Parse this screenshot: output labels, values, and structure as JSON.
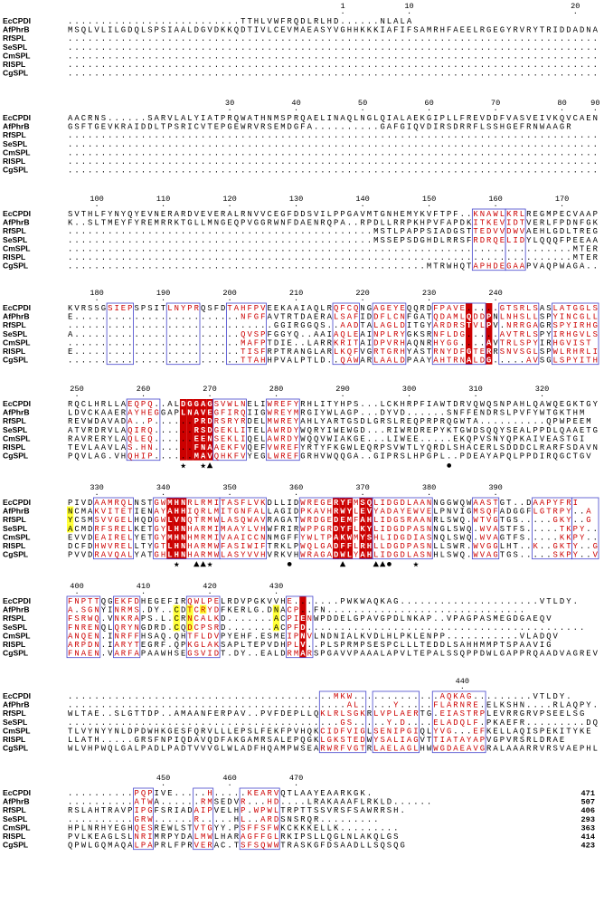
{
  "alignment": {
    "blocks": [
      {
        "ruler": [
          "1",
          "10",
          "20"
        ],
        "rows": [
          {
            "name": "EcCPDI",
            "seq": "..........................TTHLVWFRQDLRLHD......NLALA"
          },
          {
            "name": "AfPhrB",
            "seq": "MSQLVLILGDQLSPSIAALDGVDKKQDTIVLCEVMAEASYVGHHKKKIAFIFSAMRHFAEELRGEGYRVRYTRIDDADNA"
          },
          {
            "name": "RfSPL",
            "seq": "................................................................................"
          },
          {
            "name": "SeSPL",
            "seq": "................................................................................"
          },
          {
            "name": "CmSPL",
            "seq": "................................................................................"
          },
          {
            "name": "RlSPL",
            "seq": "................................................................................"
          },
          {
            "name": "CgSPL",
            "seq": "................................................................................"
          }
        ]
      },
      {
        "ruler": [
          "30",
          "40",
          "50",
          "60",
          "70",
          "80",
          "90"
        ],
        "rows": [
          {
            "name": "EcCPDI",
            "seq": "AACRNS......SARVLALYIATPRQWATHNMSPRQAELINAQLNGLQIALAEKGIPLLFREVDDFVASVEIVKQVCAEN"
          },
          {
            "name": "AfPhrB",
            "seq": "GSFTGEVKRAIDDLTPSRICVTEPGEWRVRSEMDGFA..........GAFGIQVDIRSDRRFLSSHGEFRNWAAGR"
          },
          {
            "name": "RfSPL",
            "seq": "................................................................................"
          },
          {
            "name": "SeSPL",
            "seq": "................................................................................"
          },
          {
            "name": "CmSPL",
            "seq": "................................................................................"
          },
          {
            "name": "RlSPL",
            "seq": "................................................................................"
          },
          {
            "name": "CgSPL",
            "seq": "................................................................................"
          }
        ]
      },
      {
        "ruler": [
          "100",
          "110",
          "120",
          "130",
          "140",
          "150",
          "160",
          "170"
        ],
        "rows": [
          {
            "name": "EcCPDI",
            "seq": "SVTHLFYNYQYEVNERARDVEVERALRNVVCEGFDDSVILPPGAVMTGNHEMYKVFTPF..KNAWLKRLREGMPECVAAP"
          },
          {
            "name": "AfPhrB",
            "seq": "K..SLTMEYFYREMRRKTGLLMNGEQPVGGRWNFDAENRQPA..RPDLLRRPKHPVFAPDKITKEVIDTVERLFPDNFGKL"
          },
          {
            "name": "RfSPL",
            "seq": "..............................................MSTLPAPPSIADGSTTEDVVDWVAEHLGDLTREGFDAITA."
          },
          {
            "name": "SeSPL",
            "seq": "..............................................MSSEPSDGHDLRRSFRDRQELIDYLQQQFPEEAAVD"
          },
          {
            "name": "CmSPL",
            "seq": "............................................................................MTERFPEELAEAK"
          },
          {
            "name": "RlSPL",
            "seq": "............................................................................MTERFPEELAEAK"
          },
          {
            "name": "CgSPL",
            "seq": "......................................................MTRWHQTAPHDEGAAPVAQPWAGA.."
          }
        ]
      },
      {
        "ruler": [
          "180",
          "190",
          "200",
          "210",
          "220",
          "230",
          "240"
        ],
        "rows": [
          {
            "name": "EcCPDI",
            "seq": "KVRSSGSIEPSPSITLNYPRQSFDTAHFPVEEKAAIAQLRQFCQNGAGEYEQQRDFPAVE.....GTSRLSASLATGGLSP"
          },
          {
            "name": "AfPhrB",
            "seq": "E.........................NFGFAVTRTDAERALSAFIDDFLCNFGATQDAMLQDDPNLNHSLLSPYINCGLLDA"
          },
          {
            "name": "RfSPL",
            "seq": "...............................GGIRGGQS..AADTALAGLDITGYARDRSTVLPV.NRRGAGRSPYIRHGLLTL"
          },
          {
            "name": "SeSPL",
            "seq": "A.........................QVSPFGGYQ..AAIAQLEAINPLRYGKSRNFLDG.....AVTRLSPYIRHGVLSL"
          },
          {
            "name": "CmSPL",
            "seq": "..........................MAFPTDIE..LARRKRITAIDPVRHAQNRHYGG....AVTRLSPYIRHGVIST"
          },
          {
            "name": "RlSPL",
            "seq": "E.........................TISFRPTRANGLARLKQFVGRTGRHYASTRNYDFGTERRSNVSGLSPWLRHRLITE"
          },
          {
            "name": "CgSPL",
            "seq": "..........................TTAHHPVALPTLD..QAWARLAALDPAAYAHTRNALDG.....AVSGLSPYITHGLLS"
          }
        ]
      },
      {
        "ruler": [
          "250",
          "260",
          "270",
          "280",
          "290",
          "300",
          "310",
          "320"
        ],
        "rows": [
          {
            "name": "EcCPDI",
            "seq": "RQCLHRLLAEQPQ..ALDGGAGSVWLNELIWREFYRHLITYHPS...LCKHRPFIAWTDRVQWQSNPAHLQAWQEGKTGY"
          },
          {
            "name": "AfPhrB",
            "seq": "LDVCKAAERAYHEGGAPLNAVEGFIRQIIGWREYMRGIYWLAGP...DYVD......SNFFENDRSLPVFYWTGKTHM"
          },
          {
            "name": "RfSPL",
            "seq": "REVWDAVADA..P......PRDRSRYRDELMWREYAHLYARTGSDLGRSLREQPRPRQGWTA..........QPWPEEM"
          },
          {
            "name": "SeSPL",
            "seq": "ATVRDRVLAQIRQ......RSDGEKLITELAWRDYWQRYIWEWGD...RIWRDREPYKTGWDSQQYSEALPPDLQAAETGL"
          },
          {
            "name": "CmSPL",
            "seq": "RAVRERYLAQLEQ......EENSEKLIQELAWRDYWQQVWIAKGE...LIWEE.....EKQPVSNYQPKAIVEASTGI"
          },
          {
            "name": "RlSPL",
            "seq": "TEVLAAVLAS.HN......FNAAEKFVQEFVWREFYRTYFKGWLEQRPSVWTLYQRDLSHACERLSDDDCLRARFSDAVNGNTGI"
          },
          {
            "name": "CgSPL",
            "seq": "PQVLAG.VHQHIP......MAVQHKFVYEGLWREFGRHVWQQGA..GIPRSLHPGPL..PDEAYAPQLPPDIRQGCTGV"
          }
        ]
      },
      {
        "ruler": [
          "330",
          "340",
          "350",
          "360",
          "370",
          "380",
          "390"
        ],
        "rows": [
          {
            "name": "EcCPDI",
            "seq": "PIVDAAMRQLNSTGWMHNRLRMITASFLVKDLLIDWREGERYFMSQLIDGDLAANNGGWQWAASTGT..DAAPYFRI"
          },
          {
            "name": "AfPhrB",
            "seq": "NCMAKVITETIENAYAHHIQRLMITGNFALLAGIDPKAVHRWYLEVYADAYEWVELPNVIGMSQFADGGFLGTRPY..A"
          },
          {
            "name": "RfSPL",
            "seq": "YCSMSVVGELHQDGWLVNQTRMWLASQWAVRAGATWRDGEDEMFAHLIDGSRAANRLSWQ.WTVGTGS.....GKY..G"
          },
          {
            "name": "SeSPL",
            "seq": "ACMDRFSRELKETGYLHNHARMIMAAYLVHWFRIRWPPGRDYFLKYLIDGDPASNNGLSWQ.WVASTFS.....TKPY..W"
          },
          {
            "name": "CmSPL",
            "seq": "EVVDEAIRELYETGYMHNHMRMIVAAICCNNMGFFYWLTPAKWMYSHLIDGDIASNQLSWQ.WVAGTFS.....KKPY..L"
          },
          {
            "name": "RlSPL",
            "seq": "DCFDHWVRELLTYGTLHNHARMWFASIWIFTRKLPWQLGADFFLRHLLDGDPASNLLSWR.WVGGLHT..K..GKTY..G"
          },
          {
            "name": "CgSPL",
            "seq": "PVVDRAVQALYATGHLHNHARMWLASYVVHVRKVHWRAGADWLYAHLIDGDLASNHLSWQ.WVAGTGS.....SKPY..V"
          }
        ]
      },
      {
        "ruler": [
          "400",
          "410",
          "420",
          "430"
        ],
        "rows": [
          {
            "name": "EcCPDI",
            "seq": "FNPTTQGEKFDHEGEFIRQWLPELRDVPGKVVHE.......PWKWAQKAG.....................VTLDY."
          },
          {
            "name": "AfPhrB",
            "seq": "A.SGNYINRMS.DY..CDTCRYDFKERLG.DNACP..FN.............................."
          },
          {
            "name": "RfSPL",
            "seq": "FSRWQ.VNKRAPS.L.CRNCALKD.......ACPIENWPDDELGPAVGPDLNKAP..VPAGPASMEGDGAEQV"
          },
          {
            "name": "SeSPL",
            "seq": "FNRENQLQRYNGDRD.CQDCPSRD.......ACPFD.........................................."
          },
          {
            "name": "CmSPL",
            "seq": "ANQEN.INRFFHSAQ.QHTFLDVPYEHF.ESMEIPNVLNDNIALKVDLHLPKLENPP...........VLADQV"
          },
          {
            "name": "RlSPL",
            "seq": "ARPDN.IARYTEGRF.QPKGLAKSAPLTEPVDHPLV..PLSPRMPSESPCLLLTEDDLSAHHMMPTSPAAVIG"
          },
          {
            "name": "CgSPL",
            "seq": "FNAEN.VARFAPAAWHSEGSVIDT.DY..EALDRMARSPGAVVPAAALAPVLTEPALSSQPPDWLGAPPRQAADVAGREV"
          }
        ]
      },
      {
        "ruler": [
          "440"
        ],
        "rows": [
          {
            "name": "EcCPDI",
            "seq": "........................................MKW.............AQKAG.........VTLDY."
          },
          {
            "name": "AfPhrB",
            "seq": "..........................................AL.....Y.....FLARNRE.ELKSHN....RLAQPY."
          },
          {
            "name": "RfSPL",
            "seq": "WLTAE..SLGTTDP..AMAANFERPAV..PVFDEPLLQKLRLSGKRLVPLAERTG.EIASTRPLEVRRGRVPSEELSG"
          },
          {
            "name": "SeSPL",
            "seq": ".........................................GS.....Y.D....ELADQLF.PKAEFR.........DQPRQG"
          },
          {
            "name": "CmSPL",
            "seq": "TLVYNYYNLDPDWHKGESFQRVLLLEPSLFEKFPVHQKCIDFVIGLSENIPGIQLYVG...EFKELLAQISPEKITYKE"
          },
          {
            "name": "RlSPL",
            "seq": "LLATH.....GRSFNPIQDAVQDFAKGAMRSALEPQGKLGKSTEDWYSALIAGVTTIATAYAPVGPVRSRLDRAE"
          },
          {
            "name": "CgSPL",
            "seq": "WLVHPWQLGALPADLPADTVVVGLWLADFHQAMPWSEARWRFVGTRLAELAGLHWWGDAEAVGRALAAARRVRSVAEPHL"
          }
        ]
      },
      {
        "ruler": [
          "450",
          "460",
          "470"
        ],
        "rows": [
          {
            "name": "EcCPDI",
            "seq": "..........PQPIVE.....H.....KEARVQTLAAYEAARKGK.",
            "length": "471"
          },
          {
            "name": "AfPhrB",
            "seq": "..........ATWA......RMSEDVR...HD....LRAKAAAFLRKLD......",
            "length": "507"
          },
          {
            "name": "RfSPL",
            "seq": "RSLAHTRAVPIPGFSRIADAIPVELHP.WPWLTRPTTSSVRSFSAWRRSH.",
            "length": "406"
          },
          {
            "name": "SeSPL",
            "seq": "..........GRW......R.....HL..ARDSNSRQR.........",
            "length": "293"
          },
          {
            "name": "CmSPL",
            "seq": "HPLNRHYEGHQESREWLSTVTGYY.PSFFSFWKCKKKELLK.........",
            "length": "363"
          },
          {
            "name": "RlSPL",
            "seq": "PVLKEAGLSLNRIMRPYDALMWLHARAGFFGLRKIPSLLQGLNLAKQLGS",
            "length": "414"
          },
          {
            "name": "CgSPL",
            "seq": "QPWLGQMAQALPAPRLFPRVERAC.TSFSQWWTRASKGFDSAADLLSQSQG",
            "length": "423"
          }
        ]
      }
    ],
    "markers": {
      "star": "★",
      "triangle": "▲",
      "circle": "●"
    },
    "colors": {
      "identical_bg": "#cc0000",
      "identical_text": "#ffffff",
      "similar_text": "#cc0000",
      "box_border": "#4444cc",
      "cys_highlight": "#ffff33"
    }
  }
}
